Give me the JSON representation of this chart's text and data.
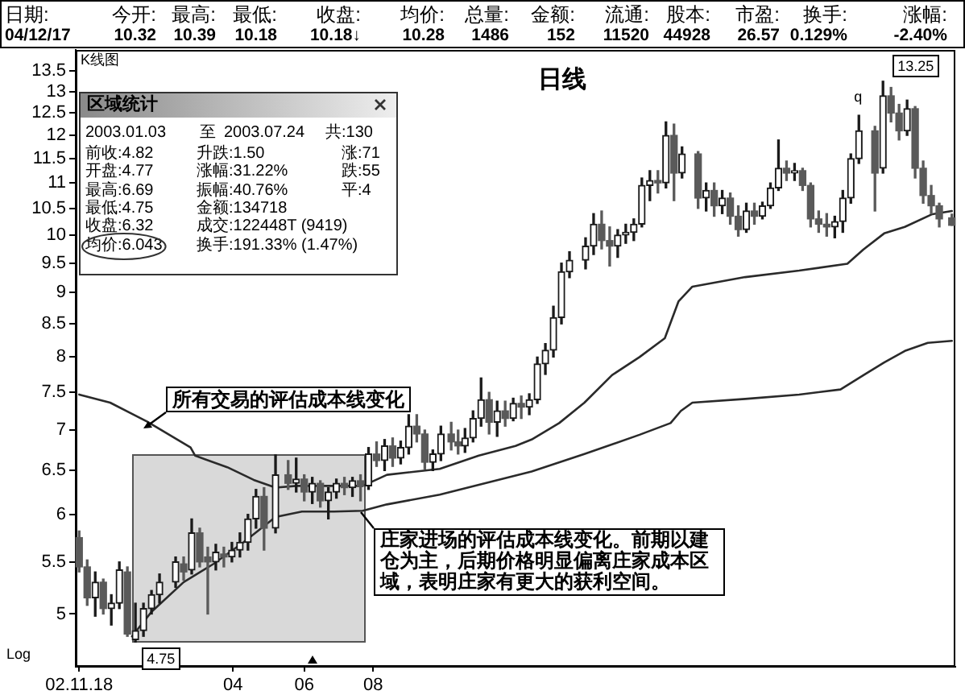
{
  "chart_data": {
    "type": "candlestick",
    "title": "日线",
    "x": [
      "2002-11-18",
      "2002-11-25",
      "2002-12-02",
      "2002-12-09",
      "2002-12-16",
      "2002-12-23",
      "2002-12-30",
      "2003-01-06",
      "2003-01-13",
      "2003-01-20",
      "2003-01-27",
      "2003-02-10",
      "2003-02-17",
      "2003-02-24",
      "2003-03-03",
      "2003-03-10",
      "2003-03-17",
      "2003-03-24",
      "2003-03-31",
      "2003-04-07",
      "2003-04-14",
      "2003-04-21",
      "2003-04-28",
      "2003-05-08",
      "2003-05-19",
      "2003-05-26",
      "2003-06-02",
      "2003-06-09",
      "2003-06-16",
      "2003-06-23",
      "2003-06-30",
      "2003-07-07",
      "2003-07-14",
      "2003-07-21",
      "2003-07-28",
      "2003-08-04",
      "2003-08-11",
      "2003-08-18",
      "2003-08-25",
      "2003-09-01",
      "2003-09-08",
      "2003-09-15",
      "2003-09-22",
      "2003-09-29",
      "2003-10-08",
      "2003-10-14",
      "2003-10-20",
      "2003-10-27",
      "2003-11-03",
      "2003-11-10",
      "2003-11-17",
      "2003-11-24",
      "2003-12-01",
      "2003-12-08",
      "2003-12-15",
      "2003-12-22",
      "2003-12-29",
      "2004-01-05",
      "2004-01-12",
      "2004-01-19",
      "2004-02-02",
      "2004-02-09",
      "2004-02-16",
      "2004-02-23",
      "2004-03-01",
      "2004-03-08",
      "2004-03-15",
      "2004-03-22",
      "2004-03-29",
      "2004-04-05",
      "2004-04-12",
      "2004-04-19",
      "2004-04-26",
      "2004-05-10",
      "2004-05-17",
      "2004-05-24",
      "2004-05-31",
      "2004-06-07",
      "2004-06-14",
      "2004-06-21",
      "2004-06-28",
      "2004-07-05",
      "2004-07-12",
      "2004-07-19",
      "2004-07-26",
      "2004-08-02",
      "2004-08-09",
      "2004-08-16",
      "2004-08-23",
      "2004-08-30",
      "2004-09-06",
      "2004-09-13",
      "2004-09-20",
      "2004-09-27",
      "2004-10-11",
      "2004-10-18",
      "2004-10-25",
      "2004-11-01",
      "2004-11-08",
      "2004-11-15",
      "2004-11-22",
      "2004-11-29",
      "2004-12-06",
      "2004-12-17"
    ],
    "ohlc": [
      [
        5.75,
        5.82,
        5.4,
        5.45
      ],
      [
        5.45,
        5.52,
        5.08,
        5.15
      ],
      [
        5.15,
        5.4,
        4.98,
        5.3
      ],
      [
        5.3,
        5.33,
        5.0,
        5.05
      ],
      [
        5.05,
        5.18,
        4.9,
        5.1
      ],
      [
        5.1,
        5.5,
        5.05,
        5.42
      ],
      [
        5.4,
        5.45,
        4.8,
        4.82
      ],
      [
        4.77,
        5.1,
        4.75,
        4.85
      ],
      [
        4.85,
        5.1,
        4.8,
        5.05
      ],
      [
        5.05,
        5.22,
        5.0,
        5.18
      ],
      [
        5.18,
        5.38,
        5.1,
        5.3
      ],
      [
        5.3,
        5.55,
        5.25,
        5.5
      ],
      [
        5.48,
        5.55,
        5.32,
        5.4
      ],
      [
        5.42,
        5.95,
        5.38,
        5.8
      ],
      [
        5.8,
        5.85,
        5.45,
        5.5
      ],
      [
        5.55,
        5.65,
        5.0,
        5.5
      ],
      [
        5.5,
        5.68,
        5.42,
        5.6
      ],
      [
        5.58,
        5.65,
        5.45,
        5.55
      ],
      [
        5.55,
        5.7,
        5.5,
        5.62
      ],
      [
        5.62,
        5.8,
        5.55,
        5.7
      ],
      [
        5.7,
        6.0,
        5.62,
        5.95
      ],
      [
        5.95,
        6.28,
        5.85,
        6.2
      ],
      [
        6.2,
        6.3,
        5.62,
        5.85
      ],
      [
        5.85,
        6.69,
        5.8,
        6.45
      ],
      [
        6.45,
        6.62,
        6.28,
        6.35
      ],
      [
        6.35,
        6.65,
        6.25,
        6.4
      ],
      [
        6.4,
        6.45,
        6.15,
        6.25
      ],
      [
        6.25,
        6.42,
        6.12,
        6.35
      ],
      [
        6.35,
        6.38,
        6.08,
        6.15
      ],
      [
        6.15,
        6.3,
        5.95,
        6.25
      ],
      [
        6.25,
        6.4,
        6.18,
        6.35
      ],
      [
        6.35,
        6.42,
        6.22,
        6.3
      ],
      [
        6.3,
        6.42,
        6.2,
        6.38
      ],
      [
        6.38,
        6.45,
        6.15,
        6.32
      ],
      [
        6.32,
        6.78,
        6.28,
        6.7
      ],
      [
        6.7,
        6.85,
        6.55,
        6.62
      ],
      [
        6.62,
        6.88,
        6.5,
        6.8
      ],
      [
        6.8,
        6.9,
        6.55,
        6.65
      ],
      [
        6.65,
        6.86,
        6.58,
        6.78
      ],
      [
        6.78,
        7.2,
        6.7,
        7.05
      ],
      [
        7.05,
        7.2,
        6.85,
        6.95
      ],
      [
        6.95,
        7.0,
        6.52,
        6.6
      ],
      [
        6.6,
        6.75,
        6.5,
        6.7
      ],
      [
        6.7,
        7.05,
        6.62,
        6.95
      ],
      [
        6.95,
        7.1,
        6.75,
        6.85
      ],
      [
        6.85,
        7.0,
        6.7,
        6.8
      ],
      [
        6.8,
        7.02,
        6.72,
        6.9
      ],
      [
        6.9,
        7.25,
        6.85,
        7.15
      ],
      [
        7.15,
        7.7,
        7.05,
        7.4
      ],
      [
        7.4,
        7.5,
        6.95,
        7.1
      ],
      [
        7.1,
        7.38,
        6.92,
        7.25
      ],
      [
        7.25,
        7.38,
        7.05,
        7.15
      ],
      [
        7.15,
        7.42,
        7.12,
        7.35
      ],
      [
        7.35,
        7.45,
        7.15,
        7.3
      ],
      [
        7.3,
        7.48,
        7.2,
        7.4
      ],
      [
        7.4,
        8.0,
        7.35,
        7.9
      ],
      [
        7.9,
        8.2,
        7.75,
        8.1
      ],
      [
        8.1,
        8.78,
        8.0,
        8.6
      ],
      [
        8.6,
        9.5,
        8.5,
        9.35
      ],
      [
        9.35,
        9.7,
        9.25,
        9.55
      ],
      [
        9.55,
        9.95,
        9.4,
        9.8
      ],
      [
        9.8,
        10.4,
        9.65,
        10.2
      ],
      [
        10.2,
        10.45,
        9.75,
        9.9
      ],
      [
        9.9,
        10.15,
        9.45,
        9.8
      ],
      [
        9.8,
        10.1,
        9.6,
        10.0
      ],
      [
        10.0,
        10.2,
        9.85,
        10.05
      ],
      [
        10.05,
        10.3,
        9.9,
        10.2
      ],
      [
        10.2,
        11.1,
        10.15,
        10.95
      ],
      [
        10.95,
        11.25,
        10.65,
        11.05
      ],
      [
        11.05,
        11.25,
        10.8,
        11.0
      ],
      [
        11.0,
        12.3,
        10.9,
        12.0
      ],
      [
        12.0,
        12.25,
        10.65,
        11.2
      ],
      [
        11.2,
        11.75,
        11.1,
        11.6
      ],
      [
        11.6,
        11.65,
        10.5,
        10.7
      ],
      [
        10.7,
        11.0,
        10.45,
        10.85
      ],
      [
        10.85,
        11.0,
        10.35,
        10.55
      ],
      [
        10.55,
        10.85,
        10.4,
        10.7
      ],
      [
        10.7,
        10.8,
        10.2,
        10.35
      ],
      [
        10.35,
        10.55,
        9.98,
        10.1
      ],
      [
        10.1,
        10.6,
        10.05,
        10.45
      ],
      [
        10.45,
        10.6,
        10.2,
        10.35
      ],
      [
        10.35,
        10.62,
        10.3,
        10.55
      ],
      [
        10.55,
        11.0,
        10.5,
        10.9
      ],
      [
        10.9,
        11.9,
        10.85,
        11.3
      ],
      [
        11.3,
        11.45,
        11.05,
        11.2
      ],
      [
        11.2,
        11.4,
        11.05,
        11.25
      ],
      [
        11.25,
        11.3,
        10.85,
        10.95
      ],
      [
        10.95,
        11.0,
        10.15,
        10.3
      ],
      [
        10.3,
        10.45,
        10.05,
        10.2
      ],
      [
        10.2,
        10.4,
        9.98,
        10.15
      ],
      [
        10.15,
        10.35,
        9.95,
        10.25
      ],
      [
        10.25,
        10.85,
        10.05,
        10.7
      ],
      [
        10.7,
        11.6,
        10.6,
        11.5
      ],
      [
        11.5,
        12.45,
        11.4,
        12.1
      ],
      [
        12.1,
        12.2,
        10.45,
        11.2
      ],
      [
        11.3,
        13.25,
        11.2,
        12.9
      ],
      [
        12.9,
        13.1,
        12.3,
        12.5
      ],
      [
        12.5,
        12.7,
        11.9,
        12.1
      ],
      [
        12.1,
        12.8,
        12.0,
        12.6
      ],
      [
        12.6,
        12.65,
        11.1,
        11.3
      ],
      [
        11.3,
        11.45,
        10.6,
        10.75
      ],
      [
        10.75,
        10.95,
        10.4,
        10.55
      ],
      [
        10.55,
        10.6,
        10.15,
        10.3
      ],
      [
        10.32,
        10.39,
        10.18,
        10.18
      ]
    ],
    "colors": [
      "#5a5a5a",
      "#5a5a5a",
      "#1a1a1a",
      "#5a5a5a",
      "#1a1a1a",
      "#1a1a1a",
      "#5a5a5a",
      "#1a1a1a",
      "#1a1a1a",
      "#1a1a1a",
      "#1a1a1a",
      "#1a1a1a",
      "#5a5a5a",
      "#1a1a1a",
      "#5a5a5a",
      "#5a5a5a",
      "#1a1a1a",
      "#5a5a5a",
      "#1a1a1a",
      "#1a1a1a",
      "#1a1a1a",
      "#1a1a1a",
      "#5a5a5a",
      "#1a1a1a",
      "#5a5a5a",
      "#1a1a1a",
      "#5a5a5a",
      "#1a1a1a",
      "#5a5a5a",
      "#1a1a1a",
      "#1a1a1a",
      "#5a5a5a",
      "#1a1a1a",
      "#5a5a5a",
      "#1a1a1a",
      "#5a5a5a",
      "#1a1a1a",
      "#5a5a5a",
      "#1a1a1a",
      "#1a1a1a",
      "#5a5a5a",
      "#5a5a5a",
      "#1a1a1a",
      "#1a1a1a",
      "#5a5a5a",
      "#5a5a5a",
      "#1a1a1a",
      "#1a1a1a",
      "#1a1a1a",
      "#5a5a5a",
      "#1a1a1a",
      "#5a5a5a",
      "#1a1a1a",
      "#5a5a5a",
      "#1a1a1a",
      "#1a1a1a",
      "#1a1a1a",
      "#1a1a1a",
      "#1a1a1a",
      "#1a1a1a",
      "#1a1a1a",
      "#1a1a1a",
      "#5a5a5a",
      "#5a5a5a",
      "#1a1a1a",
      "#1a1a1a",
      "#1a1a1a",
      "#1a1a1a",
      "#1a1a1a",
      "#5a5a5a",
      "#1a1a1a",
      "#5a5a5a",
      "#1a1a1a",
      "#5a5a5a",
      "#1a1a1a",
      "#5a5a5a",
      "#1a1a1a",
      "#5a5a5a",
      "#5a5a5a",
      "#1a1a1a",
      "#5a5a5a",
      "#1a1a1a",
      "#1a1a1a",
      "#1a1a1a",
      "#5a5a5a",
      "#1a1a1a",
      "#5a5a5a",
      "#5a5a5a",
      "#5a5a5a",
      "#5a5a5a",
      "#1a1a1a",
      "#1a1a1a",
      "#1a1a1a",
      "#1a1a1a",
      "#5a5a5a",
      "#1a1a1a",
      "#5a5a5a",
      "#5a5a5a",
      "#1a1a1a",
      "#5a5a5a",
      "#5a5a5a",
      "#5a5a5a",
      "#5a5a5a",
      "#5a5a5a"
    ],
    "series": [
      {
        "type": "line",
        "color": "#2a2a2a",
        "x": [
          "2002-11-18",
          "2002-12-15",
          "2003-01-16",
          "2003-02-23",
          "2003-02-27",
          "2003-03-27",
          "2003-04-19",
          "2003-05-08",
          "2003-05-26",
          "2003-06-28",
          "2003-07-23",
          "2003-08-13",
          "2003-09-28",
          "2003-11-01",
          "2003-12-03",
          "2003-12-17",
          "2004-01-10",
          "2004-02-01",
          "2004-02-25",
          "2004-03-20",
          "2004-04-11",
          "2004-04-23",
          "2004-05-05",
          "2004-06-20",
          "2004-08-06",
          "2004-09-17",
          "2004-10-01",
          "2004-10-19",
          "2004-11-06",
          "2004-11-30",
          "2004-12-17"
        ],
        "values": [
          7.47,
          7.36,
          7.11,
          6.78,
          6.68,
          6.54,
          6.39,
          6.3,
          6.32,
          6.32,
          6.32,
          6.45,
          6.52,
          6.68,
          6.8,
          6.88,
          7.09,
          7.36,
          7.74,
          8.0,
          8.28,
          8.86,
          9.1,
          9.26,
          9.37,
          9.49,
          9.74,
          10.03,
          10.15,
          10.39,
          10.45
        ]
      },
      {
        "type": "line",
        "color": "#2a2a2a",
        "x": [
          "2003-01-03",
          "2003-01-20",
          "2003-02-17",
          "2003-03-15",
          "2003-04-10",
          "2003-05-08",
          "2003-05-31",
          "2003-06-28",
          "2003-07-23",
          "2003-08-13",
          "2003-09-28",
          "2003-12-17",
          "2004-02-01",
          "2004-03-20",
          "2004-04-16",
          "2004-04-25",
          "2004-05-05",
          "2004-06-20",
          "2004-08-06",
          "2004-09-11",
          "2004-10-01",
          "2004-10-19",
          "2004-11-06",
          "2004-11-26",
          "2004-12-17"
        ],
        "values": [
          4.8,
          5.02,
          5.3,
          5.48,
          5.7,
          5.97,
          6.03,
          6.03,
          6.04,
          6.11,
          6.22,
          6.49,
          6.7,
          6.94,
          7.09,
          7.25,
          7.36,
          7.41,
          7.47,
          7.54,
          7.74,
          7.92,
          8.09,
          8.21,
          8.24
        ]
      }
    ],
    "xlim": [
      "2002-11-15",
      "2004-12-20"
    ],
    "xticks": [
      {
        "value": "2002-11-18",
        "label": "02.11.18"
      },
      {
        "value": "2003-04-01",
        "label": "04"
      },
      {
        "value": "2003-06-02",
        "label": "06"
      },
      {
        "value": "2003-08-01",
        "label": "08"
      }
    ],
    "ylim": [
      4.54,
      14.03
    ],
    "yticks": [
      5,
      5.5,
      6,
      6.5,
      7,
      7.5,
      8,
      8.5,
      9,
      9.5,
      10,
      10.5,
      11,
      11.5,
      12,
      12.5,
      13,
      13.5
    ],
    "log": true,
    "bands": [
      {
        "axis": "x",
        "from": "2003-01-03",
        "to": "2003-07-24",
        "color": "#d9d9d9"
      }
    ],
    "annotations": [
      "日期:",
      "今开:",
      "最高:",
      "最低:",
      "收盘:",
      "均价:",
      "总量:",
      "金额:",
      "流通:",
      "股本:",
      "市盈:",
      "换手:",
      "涨幅:",
      "04/12/17",
      "10.32",
      "10.39",
      "10.18",
      "10.18↓",
      "10.28",
      "1486",
      "152",
      "11520",
      "44928",
      "26.57",
      "0.129%",
      "-2.40%",
      "K线图",
      "区域统计",
      "2003.01.03",
      "至",
      "2003.07.24",
      "共:130",
      "前收:4.82",
      "开盘:4.77",
      "最高:6.69",
      "最低:4.75",
      "收盘:6.32",
      "均价:6.043",
      "升跌:1.50",
      "涨幅:31.22%",
      "振幅:40.76%",
      "金额:134718",
      "成交:122448T (9419)",
      "换手:191.33% (1.47%)",
      "涨:71",
      "跌:55",
      "平:4",
      "所有交易的评估成本线变化",
      "庄家进场的评估成本线变化。前期以建仓为主，后期价格明显偏离庄家成本区域，表明庄家有更大的获利空间。",
      "Log",
      {
        "text": "4.75",
        "x": "2003-01-06",
        "y": 4.75
      },
      {
        "text": "13.25",
        "x": "2004-10-18",
        "y": 13.25
      },
      {
        "text": "q",
        "x": "2004-09-27",
        "y": 12.45
      }
    ]
  }
}
